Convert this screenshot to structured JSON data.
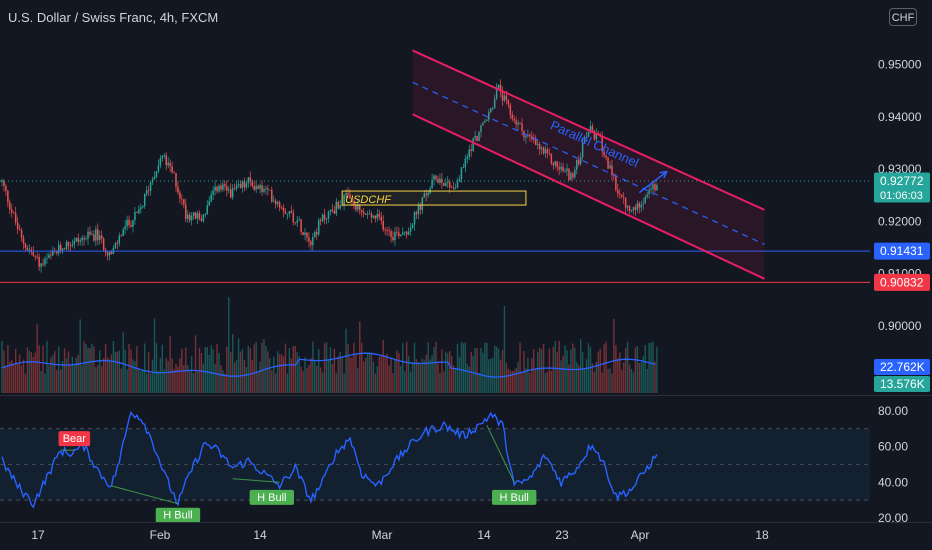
{
  "header": {
    "title": "U.S. Dollar / Swiss Franc, 4h, FXCM",
    "currency": "CHF"
  },
  "colors": {
    "background": "#131722",
    "up": "#26a69a",
    "down": "#ef5350",
    "channel": "#e91e63",
    "channel_mid": "#2962ff",
    "support_blue": "#2962ff",
    "support_red": "#f23645",
    "rsi_line": "#2962ff",
    "bear_label": "#f23645",
    "bull_label": "#4caf50",
    "box_border": "#f5d341"
  },
  "chart_data": [
    {
      "type": "candlestick",
      "title": "U.S. Dollar / Swiss Franc, 4h, FXCM",
      "ylim": [
        0.895,
        0.957
      ],
      "y_ticks": [
        0.95,
        0.94,
        0.93,
        0.92,
        0.91,
        0.9
      ],
      "y_tick_labels": [
        "0.95000",
        "0.94000",
        "0.93000",
        "0.92000",
        "0.91000",
        "0.90000"
      ],
      "x_ticks": [
        "17",
        "Feb",
        "14",
        "Mar",
        "14",
        "23",
        "Apr",
        "18"
      ],
      "price_anchors": [
        [
          0,
          0.9275
        ],
        [
          10,
          0.9165
        ],
        [
          20,
          0.9115
        ],
        [
          32,
          0.9155
        ],
        [
          48,
          0.9175
        ],
        [
          56,
          0.9135
        ],
        [
          62,
          0.9185
        ],
        [
          70,
          0.9215
        ],
        [
          78,
          0.9295
        ],
        [
          82,
          0.9325
        ],
        [
          88,
          0.9285
        ],
        [
          94,
          0.9215
        ],
        [
          102,
          0.9205
        ],
        [
          110,
          0.9265
        ],
        [
          118,
          0.9255
        ],
        [
          126,
          0.9275
        ],
        [
          136,
          0.9255
        ],
        [
          150,
          0.9205
        ],
        [
          158,
          0.9165
        ],
        [
          164,
          0.9205
        ],
        [
          176,
          0.9245
        ],
        [
          184,
          0.9215
        ],
        [
          192,
          0.9205
        ],
        [
          200,
          0.9175
        ],
        [
          208,
          0.9185
        ],
        [
          216,
          0.9245
        ],
        [
          222,
          0.9285
        ],
        [
          232,
          0.9265
        ],
        [
          240,
          0.9345
        ],
        [
          248,
          0.9395
        ],
        [
          254,
          0.9455
        ],
        [
          260,
          0.9405
        ],
        [
          268,
          0.9365
        ],
        [
          276,
          0.9335
        ],
        [
          284,
          0.9305
        ],
        [
          292,
          0.9285
        ],
        [
          300,
          0.9375
        ],
        [
          306,
          0.9355
        ],
        [
          312,
          0.9285
        ],
        [
          318,
          0.9235
        ],
        [
          322,
          0.9215
        ],
        [
          328,
          0.9245
        ],
        [
          334,
          0.9265
        ]
      ],
      "price_labels": [
        {
          "text": "0.92772",
          "sub": "01:06:03",
          "value": 0.92772,
          "color": "#26a69a"
        },
        {
          "text": "0.91431",
          "value": 0.91431,
          "color": "#2962ff"
        },
        {
          "text": "0.90832",
          "value": 0.90832,
          "color": "#f23645"
        }
      ],
      "hlines": [
        {
          "value": 0.91431,
          "color": "#2962ff"
        },
        {
          "value": 0.90832,
          "color": "#f23645"
        }
      ],
      "parallel_channel": {
        "label": "Parallel Channel",
        "upper": [
          [
            210,
            0.9527
          ],
          [
            390,
            0.9222
          ]
        ],
        "lower": [
          [
            210,
            0.9405
          ],
          [
            390,
            0.909
          ]
        ],
        "mid": [
          [
            210,
            0.9466
          ],
          [
            390,
            0.9156
          ]
        ]
      },
      "annotation_box": {
        "label": "USDCHF",
        "x_range": [
          174,
          268
        ],
        "y_range": [
          0.9258,
          0.9242
        ]
      },
      "arrow": {
        "from": [
          326,
          0.9255
        ],
        "to": [
          340,
          0.9295
        ]
      }
    },
    {
      "type": "bar",
      "name": "volume",
      "value_labels": [
        {
          "text": "22.762K",
          "color": "#2962ff"
        },
        {
          "text": "13.576K",
          "color": "#26a69a"
        }
      ]
    },
    {
      "type": "line",
      "name": "rsi",
      "ylim": [
        20,
        85
      ],
      "y_ticks": [
        80,
        60,
        40,
        20
      ],
      "y_tick_labels": [
        "80.00",
        "60.00",
        "40.00",
        "20.00"
      ],
      "band": [
        30,
        70
      ],
      "midline": 50,
      "anchors": [
        [
          0,
          52
        ],
        [
          8,
          38
        ],
        [
          16,
          28
        ],
        [
          24,
          45
        ],
        [
          30,
          58
        ],
        [
          34,
          56
        ],
        [
          42,
          60
        ],
        [
          50,
          45
        ],
        [
          56,
          38
        ],
        [
          60,
          52
        ],
        [
          66,
          80
        ],
        [
          72,
          75
        ],
        [
          78,
          60
        ],
        [
          84,
          42
        ],
        [
          90,
          28
        ],
        [
          96,
          45
        ],
        [
          104,
          62
        ],
        [
          110,
          58
        ],
        [
          118,
          48
        ],
        [
          126,
          52
        ],
        [
          134,
          45
        ],
        [
          142,
          38
        ],
        [
          150,
          48
        ],
        [
          158,
          30
        ],
        [
          164,
          40
        ],
        [
          170,
          55
        ],
        [
          178,
          65
        ],
        [
          184,
          45
        ],
        [
          192,
          38
        ],
        [
          200,
          50
        ],
        [
          208,
          60
        ],
        [
          216,
          68
        ],
        [
          226,
          72
        ],
        [
          236,
          66
        ],
        [
          244,
          72
        ],
        [
          250,
          78
        ],
        [
          256,
          72
        ],
        [
          262,
          38
        ],
        [
          270,
          42
        ],
        [
          278,
          55
        ],
        [
          286,
          40
        ],
        [
          294,
          48
        ],
        [
          302,
          62
        ],
        [
          308,
          50
        ],
        [
          314,
          32
        ],
        [
          322,
          36
        ],
        [
          330,
          48
        ],
        [
          334,
          54
        ]
      ],
      "labels": [
        {
          "text": "Bear",
          "kind": "bear",
          "at": [
            37,
            58
          ]
        },
        {
          "text": "H Bull",
          "kind": "bull",
          "at": [
            90,
            28
          ]
        },
        {
          "text": "H Bull",
          "kind": "bull",
          "at": [
            138,
            38
          ]
        },
        {
          "text": "H Bull",
          "kind": "bull",
          "at": [
            262,
            38
          ]
        }
      ],
      "divergence_lines": [
        {
          "from": [
            30,
            58
          ],
          "to": [
            37,
            58
          ]
        },
        {
          "from": [
            56,
            38
          ],
          "to": [
            90,
            28
          ]
        },
        {
          "from": [
            118,
            42
          ],
          "to": [
            142,
            40
          ]
        },
        {
          "from": [
            248,
            72
          ],
          "to": [
            262,
            40
          ]
        }
      ]
    }
  ]
}
